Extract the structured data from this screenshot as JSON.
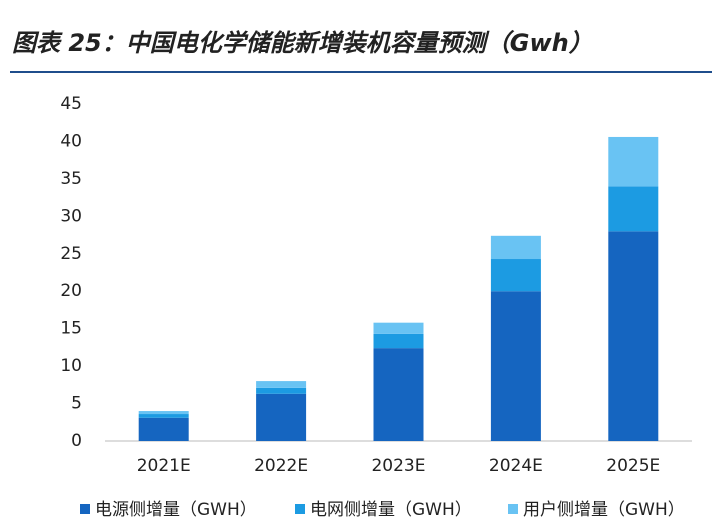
{
  "chart_data": {
    "type": "stacked_bar",
    "title": "图表 25：中国电化学储能新增装机容量预测（Gwh）",
    "categories": [
      "2021E",
      "2022E",
      "2023E",
      "2024E",
      "2025E"
    ],
    "series": [
      {
        "name": "电源侧增量（GWH）",
        "color": "#1565c0",
        "values": [
          3.1,
          6.3,
          12.4,
          20.0,
          28.0
        ]
      },
      {
        "name": "电网侧增量（GWH）",
        "color": "#1c9be2",
        "values": [
          0.5,
          0.8,
          1.9,
          4.3,
          6.0
        ]
      },
      {
        "name": "用户侧增量（GWH）",
        "color": "#69c3f3",
        "values": [
          0.4,
          0.9,
          1.5,
          3.1,
          6.6
        ]
      }
    ],
    "ylim": [
      0,
      45
    ],
    "yticks": [
      0,
      5,
      10,
      15,
      20,
      25,
      30,
      35,
      40,
      45
    ],
    "grid": false
  }
}
